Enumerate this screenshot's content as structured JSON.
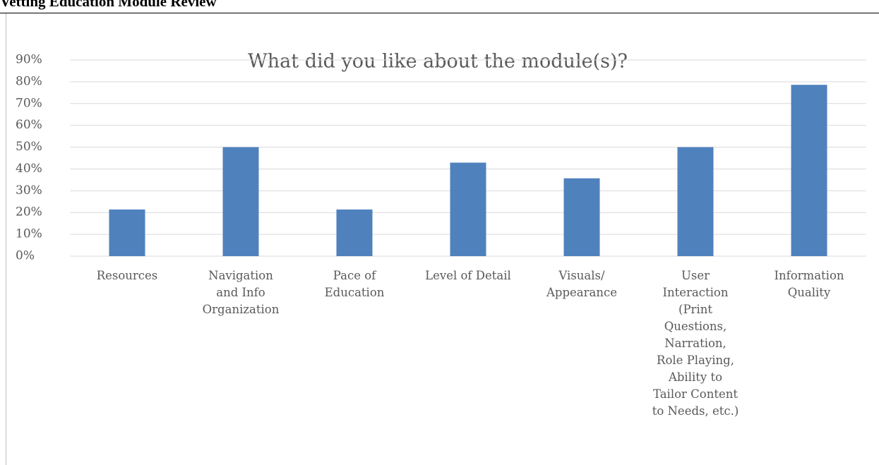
{
  "header": {
    "title": "Vetting Education Module Review"
  },
  "chart_data": {
    "type": "bar",
    "title": "What did you like about the module(s)?",
    "categories": [
      "Resources",
      "Navigation and Info Organization",
      "Pace of Education",
      "Level of Detail",
      "Visuals/ Appearance",
      "User Interaction (Print Questions, Narration, Role Playing, Ability to Tailor Content to Needs, etc.)",
      "Information Quality"
    ],
    "values": [
      21.4,
      50,
      21.4,
      42.9,
      35.7,
      50,
      78.6
    ],
    "color": "#4f81bd",
    "ylim": [
      0,
      90
    ],
    "yticks": [
      {
        "value": 0,
        "label": "0%"
      },
      {
        "value": 10,
        "label": "10%"
      },
      {
        "value": 20,
        "label": "20%"
      },
      {
        "value": 30,
        "label": "30%"
      },
      {
        "value": 40,
        "label": "40%"
      },
      {
        "value": 50,
        "label": "50%"
      },
      {
        "value": 60,
        "label": "60%"
      },
      {
        "value": 70,
        "label": "70%"
      },
      {
        "value": 80,
        "label": "80%"
      },
      {
        "value": 90,
        "label": "90%"
      }
    ],
    "grid": true
  }
}
